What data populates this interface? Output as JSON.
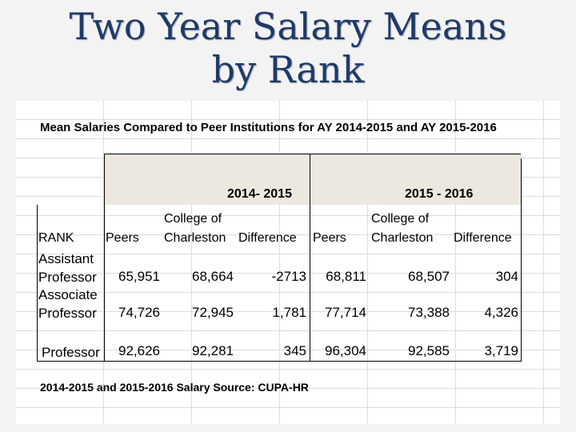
{
  "slide": {
    "title_line1": "Two Year Salary Means",
    "title_line2": "by Rank"
  },
  "table": {
    "caption": "Mean Salaries Compared to Peer Institutions for AY 2014-2015 and AY 2015-2016",
    "period1": "2014- 2015",
    "period2": "2015 - 2016",
    "headers": {
      "rank": "RANK",
      "peers1": "Peers",
      "coc1_line1": "College of",
      "coc1_line2": "Charleston",
      "diff1": "Difference",
      "peers2": "Peers",
      "coc2_line1": "College of",
      "coc2_line2": "Charleston",
      "diff2": "Difference"
    },
    "rows": [
      {
        "rank_line1": "Assistant",
        "rank_line2": "Professor",
        "peers1": "65,951",
        "coc1": "68,664",
        "diff1": "-2713",
        "peers2": "68,811",
        "coc2": "68,507",
        "diff2": "304"
      },
      {
        "rank_line1": "Associate",
        "rank_line2": "Professor",
        "peers1": "74,726",
        "coc1": "72,945",
        "diff1": "1,781",
        "peers2": "77,714",
        "coc2": "73,388",
        "diff2": "4,326"
      },
      {
        "rank_line1": "",
        "rank_line2": "Professor",
        "peers1": "92,626",
        "coc1": "92,281",
        "diff1": "345",
        "peers2": "96,304",
        "coc2": "92,585",
        "diff2": "3,719"
      }
    ],
    "source": "2014-2015 and 2015-2016 Salary Source:  CUPA-HR"
  }
}
